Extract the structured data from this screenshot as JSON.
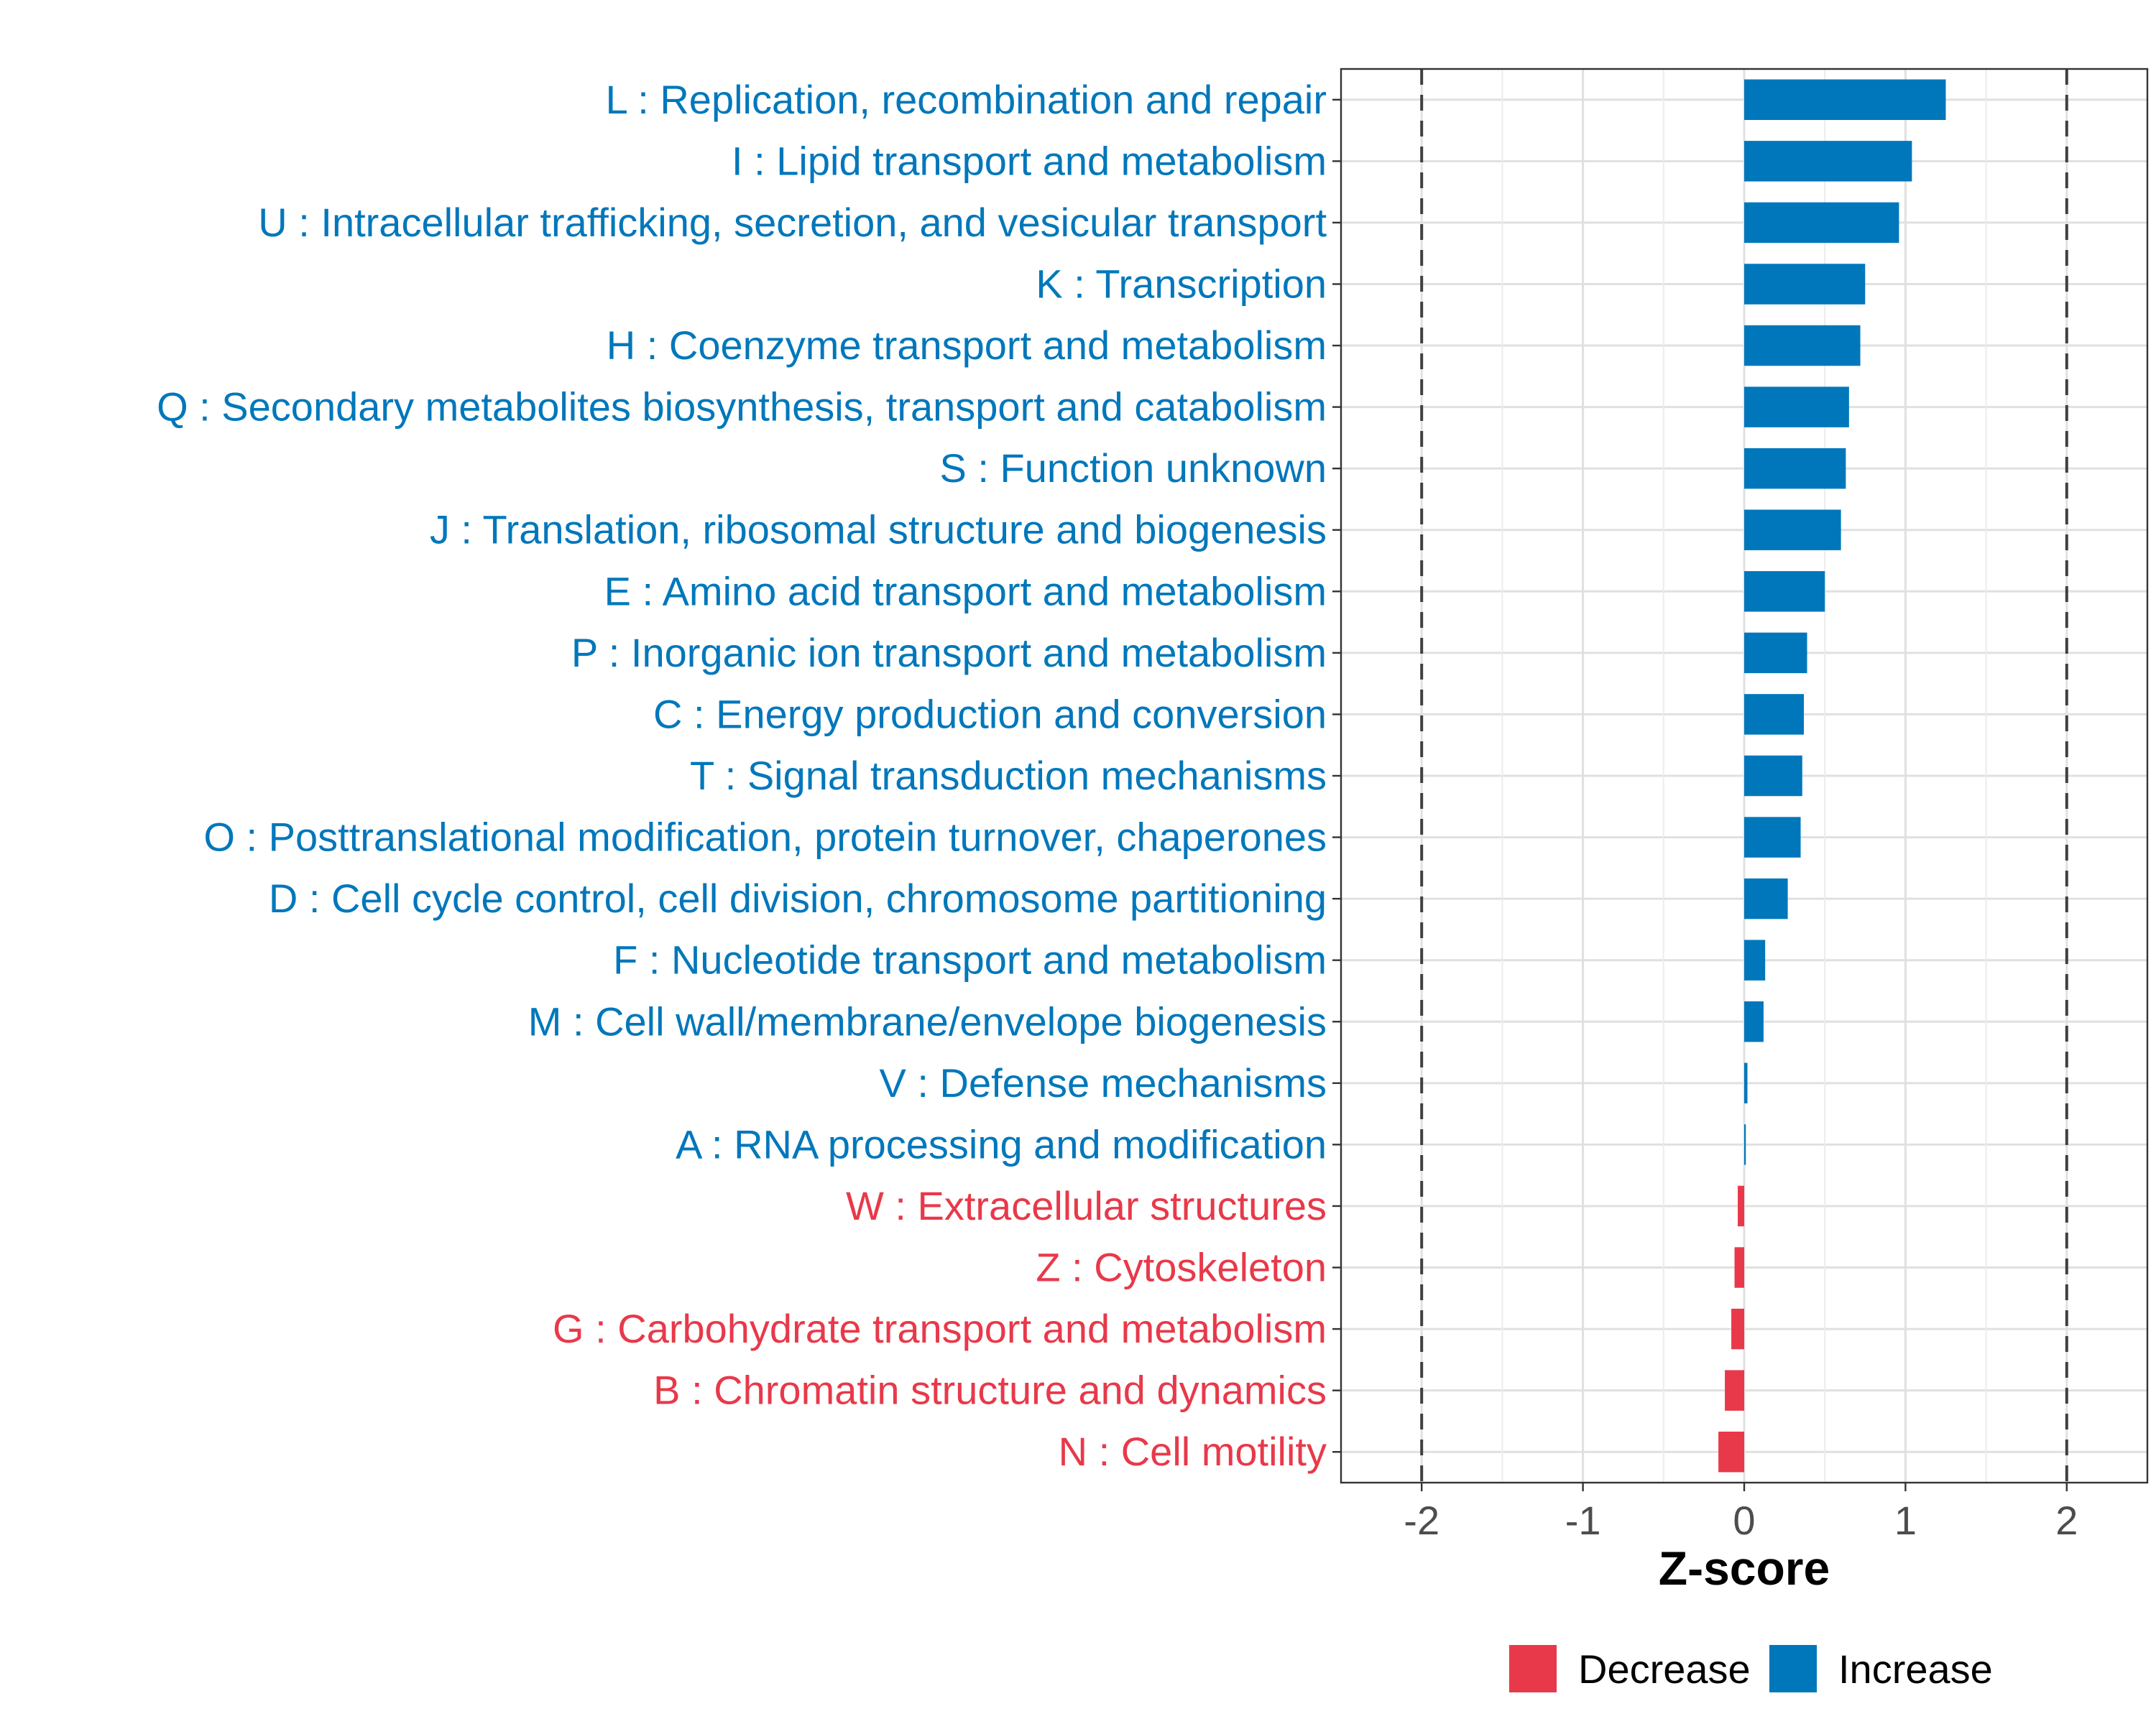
{
  "chart_data": {
    "type": "bar",
    "orientation": "horizontal",
    "xlabel": "Z-score",
    "xlim": [
      -2.5,
      2.5
    ],
    "xticks": [
      -2,
      -1,
      0,
      1,
      2
    ],
    "xtick_labels": [
      "-2",
      "-1",
      "0",
      "1",
      "2"
    ],
    "reference_lines": [
      -2,
      2
    ],
    "grid": true,
    "legend": {
      "position": "bottom",
      "entries": [
        {
          "label": "Decrease",
          "color": "#e8394a"
        },
        {
          "label": "Increase",
          "color": "#0077bb"
        }
      ]
    },
    "categories": [
      "L : Replication, recombination and repair",
      "I : Lipid transport and metabolism",
      "U : Intracellular trafficking, secretion, and vesicular transport",
      "K : Transcription",
      "H : Coenzyme transport and metabolism",
      "Q : Secondary metabolites biosynthesis, transport and catabolism",
      "S : Function unknown",
      "J : Translation, ribosomal structure and biogenesis",
      "E : Amino acid transport and metabolism",
      "P : Inorganic ion transport and metabolism",
      "C : Energy production and conversion",
      "T : Signal transduction mechanisms",
      "O : Posttranslational modification, protein turnover, chaperones",
      "D : Cell cycle control, cell division, chromosome partitioning",
      "F : Nucleotide transport and metabolism",
      "M : Cell wall/membrane/envelope biogenesis",
      "V : Defense mechanisms",
      "A : RNA processing and modification",
      "W : Extracellular structures",
      "Z : Cytoskeleton",
      "G : Carbohydrate transport and metabolism",
      "B : Chromatin structure and dynamics",
      "N : Cell motility"
    ],
    "values": [
      1.25,
      1.04,
      0.96,
      0.75,
      0.72,
      0.65,
      0.63,
      0.6,
      0.5,
      0.39,
      0.37,
      0.36,
      0.35,
      0.27,
      0.13,
      0.12,
      0.02,
      0.01,
      -0.04,
      -0.06,
      -0.08,
      -0.12,
      -0.16
    ],
    "direction": [
      "Increase",
      "Increase",
      "Increase",
      "Increase",
      "Increase",
      "Increase",
      "Increase",
      "Increase",
      "Increase",
      "Increase",
      "Increase",
      "Increase",
      "Increase",
      "Increase",
      "Increase",
      "Increase",
      "Increase",
      "Increase",
      "Decrease",
      "Decrease",
      "Decrease",
      "Decrease",
      "Decrease"
    ]
  }
}
